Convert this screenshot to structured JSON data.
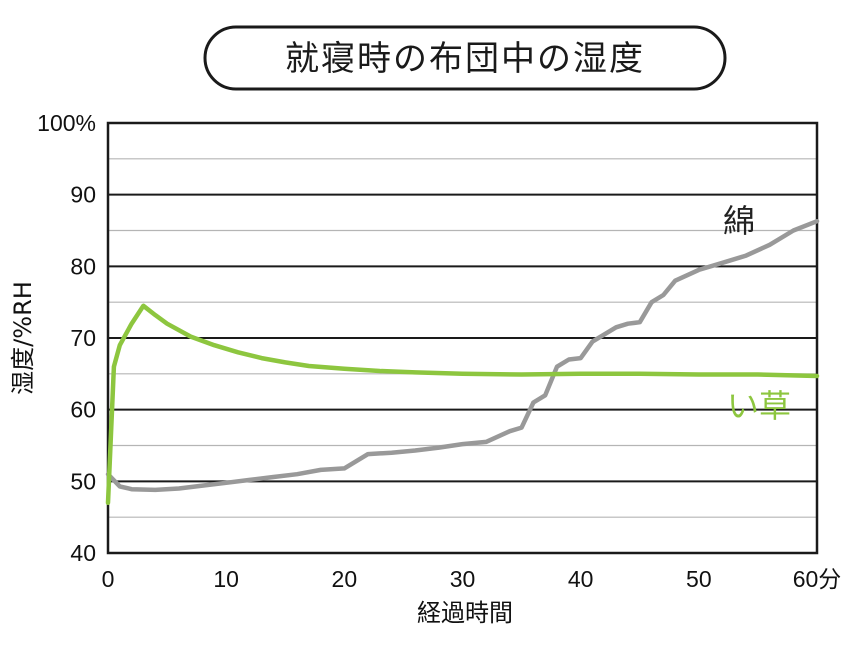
{
  "chart_data": {
    "type": "line",
    "title": "就寝時の布団中の湿度",
    "xlabel": "経過時間",
    "ylabel": "湿度/%RH",
    "xlim": [
      0,
      60
    ],
    "ylim": [
      40,
      100
    ],
    "x_ticks": [
      "0",
      "10",
      "20",
      "30",
      "40",
      "50",
      "60分"
    ],
    "y_ticks": [
      "40",
      "50",
      "60",
      "70",
      "80",
      "90",
      "100%"
    ],
    "grid": true,
    "series": [
      {
        "name": "綿",
        "color": "#999999",
        "points": [
          [
            0,
            51
          ],
          [
            1,
            49.3
          ],
          [
            2,
            48.9
          ],
          [
            4,
            48.8
          ],
          [
            6,
            49
          ],
          [
            8,
            49.4
          ],
          [
            10,
            49.8
          ],
          [
            12,
            50.2
          ],
          [
            14,
            50.6
          ],
          [
            16,
            51
          ],
          [
            18,
            51.6
          ],
          [
            20,
            51.8
          ],
          [
            22,
            53.8
          ],
          [
            24,
            54
          ],
          [
            26,
            54.3
          ],
          [
            28,
            54.7
          ],
          [
            30,
            55.2
          ],
          [
            32,
            55.5
          ],
          [
            34,
            57
          ],
          [
            35,
            57.5
          ],
          [
            36,
            61
          ],
          [
            37,
            62
          ],
          [
            38,
            66
          ],
          [
            39,
            67
          ],
          [
            40,
            67.2
          ],
          [
            41,
            69.5
          ],
          [
            42,
            70.5
          ],
          [
            43,
            71.5
          ],
          [
            44,
            72
          ],
          [
            45,
            72.2
          ],
          [
            46,
            75
          ],
          [
            47,
            76
          ],
          [
            48,
            78
          ],
          [
            50,
            79.5
          ],
          [
            52,
            80.5
          ],
          [
            54,
            81.5
          ],
          [
            56,
            83
          ],
          [
            58,
            85
          ],
          [
            60,
            86.3
          ]
        ]
      },
      {
        "name": "い草",
        "color": "#8dc63f",
        "points": [
          [
            0,
            47
          ],
          [
            0.5,
            66
          ],
          [
            1,
            69
          ],
          [
            2,
            72
          ],
          [
            3,
            74.5
          ],
          [
            4,
            73.2
          ],
          [
            5,
            72
          ],
          [
            7,
            70.2
          ],
          [
            9,
            69
          ],
          [
            11,
            68
          ],
          [
            13,
            67.2
          ],
          [
            15,
            66.6
          ],
          [
            17,
            66.1
          ],
          [
            20,
            65.7
          ],
          [
            23,
            65.4
          ],
          [
            26,
            65.2
          ],
          [
            30,
            65
          ],
          [
            35,
            64.9
          ],
          [
            40,
            65
          ],
          [
            45,
            65
          ],
          [
            50,
            64.9
          ],
          [
            55,
            64.9
          ],
          [
            60,
            64.7
          ]
        ]
      }
    ]
  }
}
